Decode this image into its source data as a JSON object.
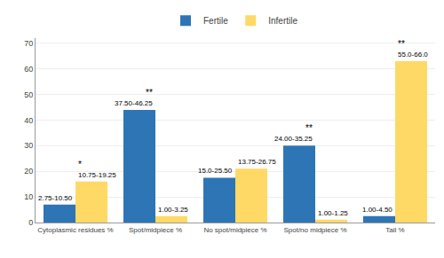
{
  "chart_data": {
    "type": "bar",
    "categories": [
      "Cytoplasmic residues %",
      "Spot/midpiece %",
      "No spot/midpiece %",
      "Spot/no midpiece %",
      "Tail %"
    ],
    "series": [
      {
        "name": "Fertile",
        "color": "#2e75b6",
        "values": [
          7,
          44,
          17.5,
          30,
          2.5
        ]
      },
      {
        "name": "Infertile",
        "color": "#ffd966",
        "values": [
          16,
          2.5,
          21,
          1.1,
          63
        ]
      }
    ],
    "annotations": [
      {
        "text": "2.75-10.50",
        "category": "Cytoplasmic residues %",
        "series": "Fertile"
      },
      {
        "text": "37.50-46.25",
        "category": "Spot/midpiece %",
        "series": "Fertile"
      },
      {
        "text": "15.0-25.50",
        "category": "No spot/midpiece %",
        "series": "Fertile"
      },
      {
        "text": "24.00-35.25",
        "category": "Spot/no midpiece %",
        "series": "Fertile"
      },
      {
        "text": "1.00-4.50",
        "category": "Tail %",
        "series": "Fertile"
      },
      {
        "text": "10.75-19.25",
        "category": "Cytoplasmic residues %",
        "series": "Infertile"
      },
      {
        "text": "1.00-3.25",
        "category": "Spot/midpiece %",
        "series": "Infertile"
      },
      {
        "text": "13.75-26.75",
        "category": "No spot/midpiece %",
        "series": "Infertile"
      },
      {
        "text": "1.00-1.25",
        "category": "Spot/no midpiece %",
        "series": "Infertile"
      },
      {
        "text": "55.0-66.0",
        "category": "Tail %",
        "series": "Infertile"
      },
      {
        "text": "*",
        "category": "Cytoplasmic residues %",
        "series": "Infertile"
      },
      {
        "text": "**",
        "category": "Spot/midpiece %",
        "series": "Fertile"
      },
      {
        "text": "**",
        "category": "Spot/no midpiece %",
        "series": "Fertile"
      },
      {
        "text": "**",
        "category": "Tail %",
        "series": "Infertile"
      }
    ],
    "ylim": [
      0,
      72
    ],
    "yticks": [
      0,
      10,
      20,
      30,
      40,
      50,
      60,
      70
    ],
    "grid": true,
    "legend": "top"
  }
}
